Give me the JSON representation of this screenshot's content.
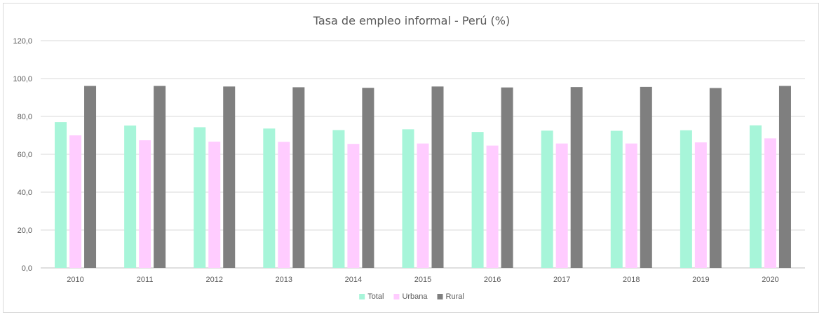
{
  "chart_data": {
    "type": "bar",
    "title": "Tasa de empleo informal - Perú (%)",
    "xlabel": "",
    "ylabel": "",
    "ylim": [
      0,
      120
    ],
    "yticks": [
      "0,0",
      "20,0",
      "40,0",
      "60,0",
      "80,0",
      "100,0",
      "120,0"
    ],
    "grid": true,
    "legend_position": "bottom",
    "categories": [
      "2010",
      "2011",
      "2012",
      "2013",
      "2014",
      "2015",
      "2016",
      "2017",
      "2018",
      "2019",
      "2020"
    ],
    "series": [
      {
        "name": "Total",
        "color": "#a7f5d9",
        "values": [
          77.0,
          75.2,
          74.3,
          73.6,
          72.8,
          73.2,
          71.8,
          72.5,
          72.4,
          72.7,
          75.3
        ]
      },
      {
        "name": "Urbana",
        "color": "#ffccff",
        "values": [
          70.0,
          67.4,
          66.7,
          66.6,
          65.5,
          65.7,
          64.6,
          65.7,
          65.7,
          66.3,
          68.4
        ]
      },
      {
        "name": "Rural",
        "color": "#7f7f7f",
        "values": [
          96.1,
          96.1,
          95.8,
          95.4,
          95.1,
          95.8,
          95.3,
          95.5,
          95.6,
          95.0,
          96.1
        ]
      }
    ]
  }
}
